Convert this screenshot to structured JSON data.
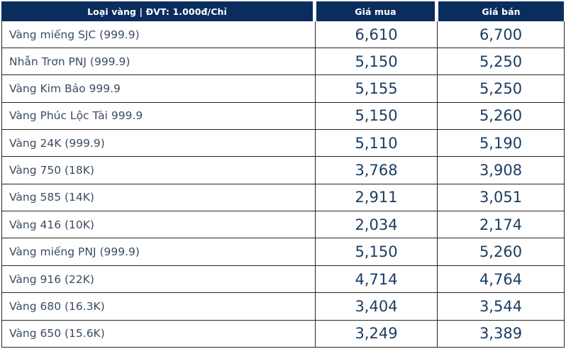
{
  "header": {
    "type_column_label": "Loại vàng | ĐVT: 1.000đ/Chỉ",
    "buy_column_label": "Giá mua",
    "sell_column_label": "Giá bán"
  },
  "rows": [
    {
      "type": "Vàng miếng SJC (999.9)",
      "buy": "6,610",
      "sell": "6,700"
    },
    {
      "type": "Nhẫn Trơn PNJ (999.9)",
      "buy": "5,150",
      "sell": "5,250"
    },
    {
      "type": "Vàng Kim Bảo 999.9",
      "buy": "5,155",
      "sell": "5,250"
    },
    {
      "type": "Vàng Phúc Lộc Tài 999.9",
      "buy": "5,150",
      "sell": "5,260"
    },
    {
      "type": "Vàng 24K (999.9)",
      "buy": "5,110",
      "sell": "5,190"
    },
    {
      "type": "Vàng 750 (18K)",
      "buy": "3,768",
      "sell": "3,908"
    },
    {
      "type": "Vàng 585 (14K)",
      "buy": "2,911",
      "sell": "3,051"
    },
    {
      "type": "Vàng 416 (10K)",
      "buy": "2,034",
      "sell": "2,174"
    },
    {
      "type": "Vàng miếng PNJ (999.9)",
      "buy": "5,150",
      "sell": "5,260"
    },
    {
      "type": "Vàng 916 (22K)",
      "buy": "4,714",
      "sell": "4,764"
    },
    {
      "type": "Vàng 680 (16.3K)",
      "buy": "3,404",
      "sell": "3,544"
    },
    {
      "type": "Vàng 650 (15.6K)",
      "buy": "3,249",
      "sell": "3,389"
    }
  ],
  "chart_data": {
    "type": "table",
    "columns": [
      "Loại vàng | ĐVT: 1.000đ/Chỉ",
      "Giá mua",
      "Giá bán"
    ],
    "unit_note": "1.000đ/Chỉ",
    "rows": [
      [
        "Vàng miếng SJC (999.9)",
        6610,
        6700
      ],
      [
        "Nhẫn Trơn PNJ (999.9)",
        5150,
        5250
      ],
      [
        "Vàng Kim Bảo 999.9",
        5155,
        5250
      ],
      [
        "Vàng Phúc Lộc Tài 999.9",
        5150,
        5260
      ],
      [
        "Vàng 24K (999.9)",
        5110,
        5190
      ],
      [
        "Vàng 750 (18K)",
        3768,
        3908
      ],
      [
        "Vàng 585 (14K)",
        2911,
        3051
      ],
      [
        "Vàng 416 (10K)",
        2034,
        2174
      ],
      [
        "Vàng miếng PNJ (999.9)",
        5150,
        5260
      ],
      [
        "Vàng 916 (22K)",
        4714,
        4764
      ],
      [
        "Vàng 680 (16.3K)",
        3404,
        3544
      ],
      [
        "Vàng 650 (15.6K)",
        3249,
        3389
      ]
    ]
  },
  "colors": {
    "header_bg": "#0a2d5e",
    "header_text": "#ffffff",
    "row_label_text": "#3b4c60",
    "price_text": "#1b3d62",
    "grid_border": "#252525",
    "row_bg": "#ffffff"
  }
}
